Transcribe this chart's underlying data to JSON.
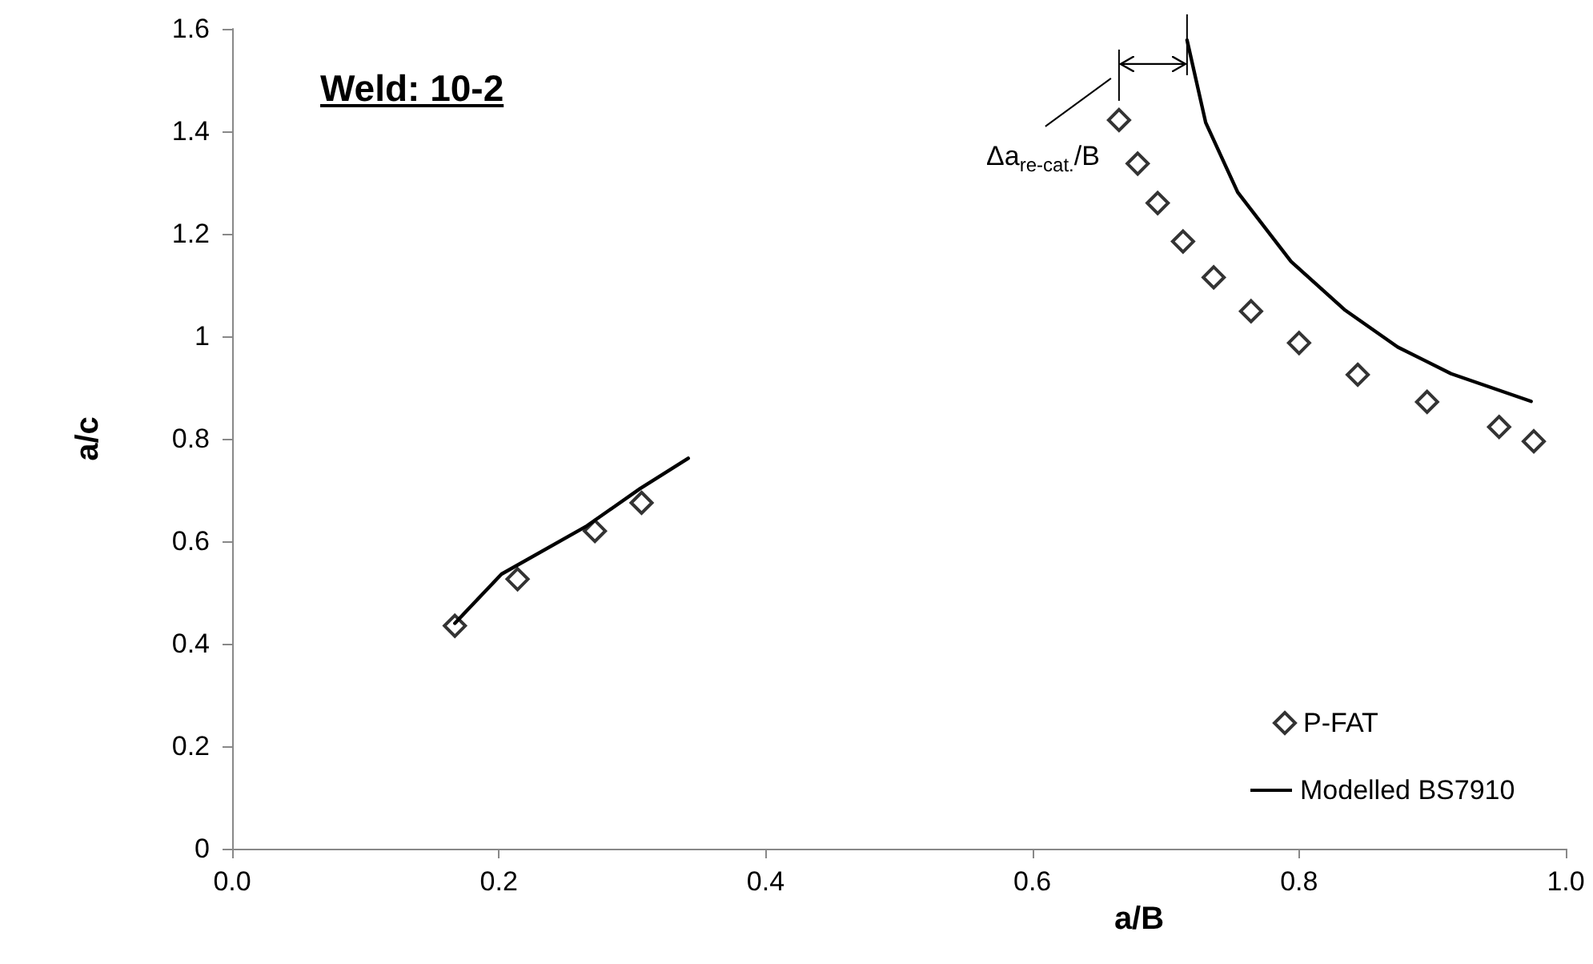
{
  "chart_data": {
    "type": "scatter",
    "title": "Weld: 10-2",
    "xlabel": "a/B",
    "ylabel": "a/c",
    "xlim": [
      0,
      1
    ],
    "xticks": [
      {
        "value": 0,
        "label": "0.0"
      },
      {
        "value": 0.2,
        "label": "0.2"
      },
      {
        "value": 0.4,
        "label": "0.4"
      },
      {
        "value": 0.6,
        "label": "0.6"
      },
      {
        "value": 0.8,
        "label": "0.8"
      },
      {
        "value": 1,
        "label": "1.0"
      }
    ],
    "ylim": [
      0,
      1.6
    ],
    "yticks": [
      0,
      0.2,
      0.4,
      0.6,
      0.8,
      1,
      1.2,
      1.4,
      1.6
    ],
    "grid": false,
    "legend": "bottom right",
    "annotations": [
      "Δa$_{re-cat.}$/B"
    ],
    "series": [
      {
        "name": "P-FAT",
        "marker": "diamond",
        "color": "#000000",
        "x": [
          0.167,
          0.214,
          0.272,
          0.307,
          0.665,
          0.679,
          0.694,
          0.713,
          0.736,
          0.764,
          0.8,
          0.844,
          0.896,
          0.95,
          0.976
        ],
        "values": [
          0.435,
          0.526,
          0.62,
          0.675,
          1.422,
          1.337,
          1.26,
          1.185,
          1.115,
          1.049,
          0.987,
          0.925,
          0.872,
          0.823,
          0.795
        ]
      },
      {
        "name": "Modelled BS7910",
        "type": "line",
        "marker": "none",
        "line_style": "solid",
        "color": "#000000",
        "x": [
          0.167,
          0.202,
          0.266,
          0.306,
          0.342,
          0.53,
          0.716,
          0.73,
          0.754,
          0.794,
          0.834,
          0.874,
          0.914,
          0.974
        ],
        "values": [
          0.44,
          0.536,
          0.63,
          0.703,
          0.762,
          null,
          1.578,
          1.417,
          1.281,
          1.146,
          1.052,
          0.979,
          0.927,
          0.873
        ]
      }
    ]
  }
}
